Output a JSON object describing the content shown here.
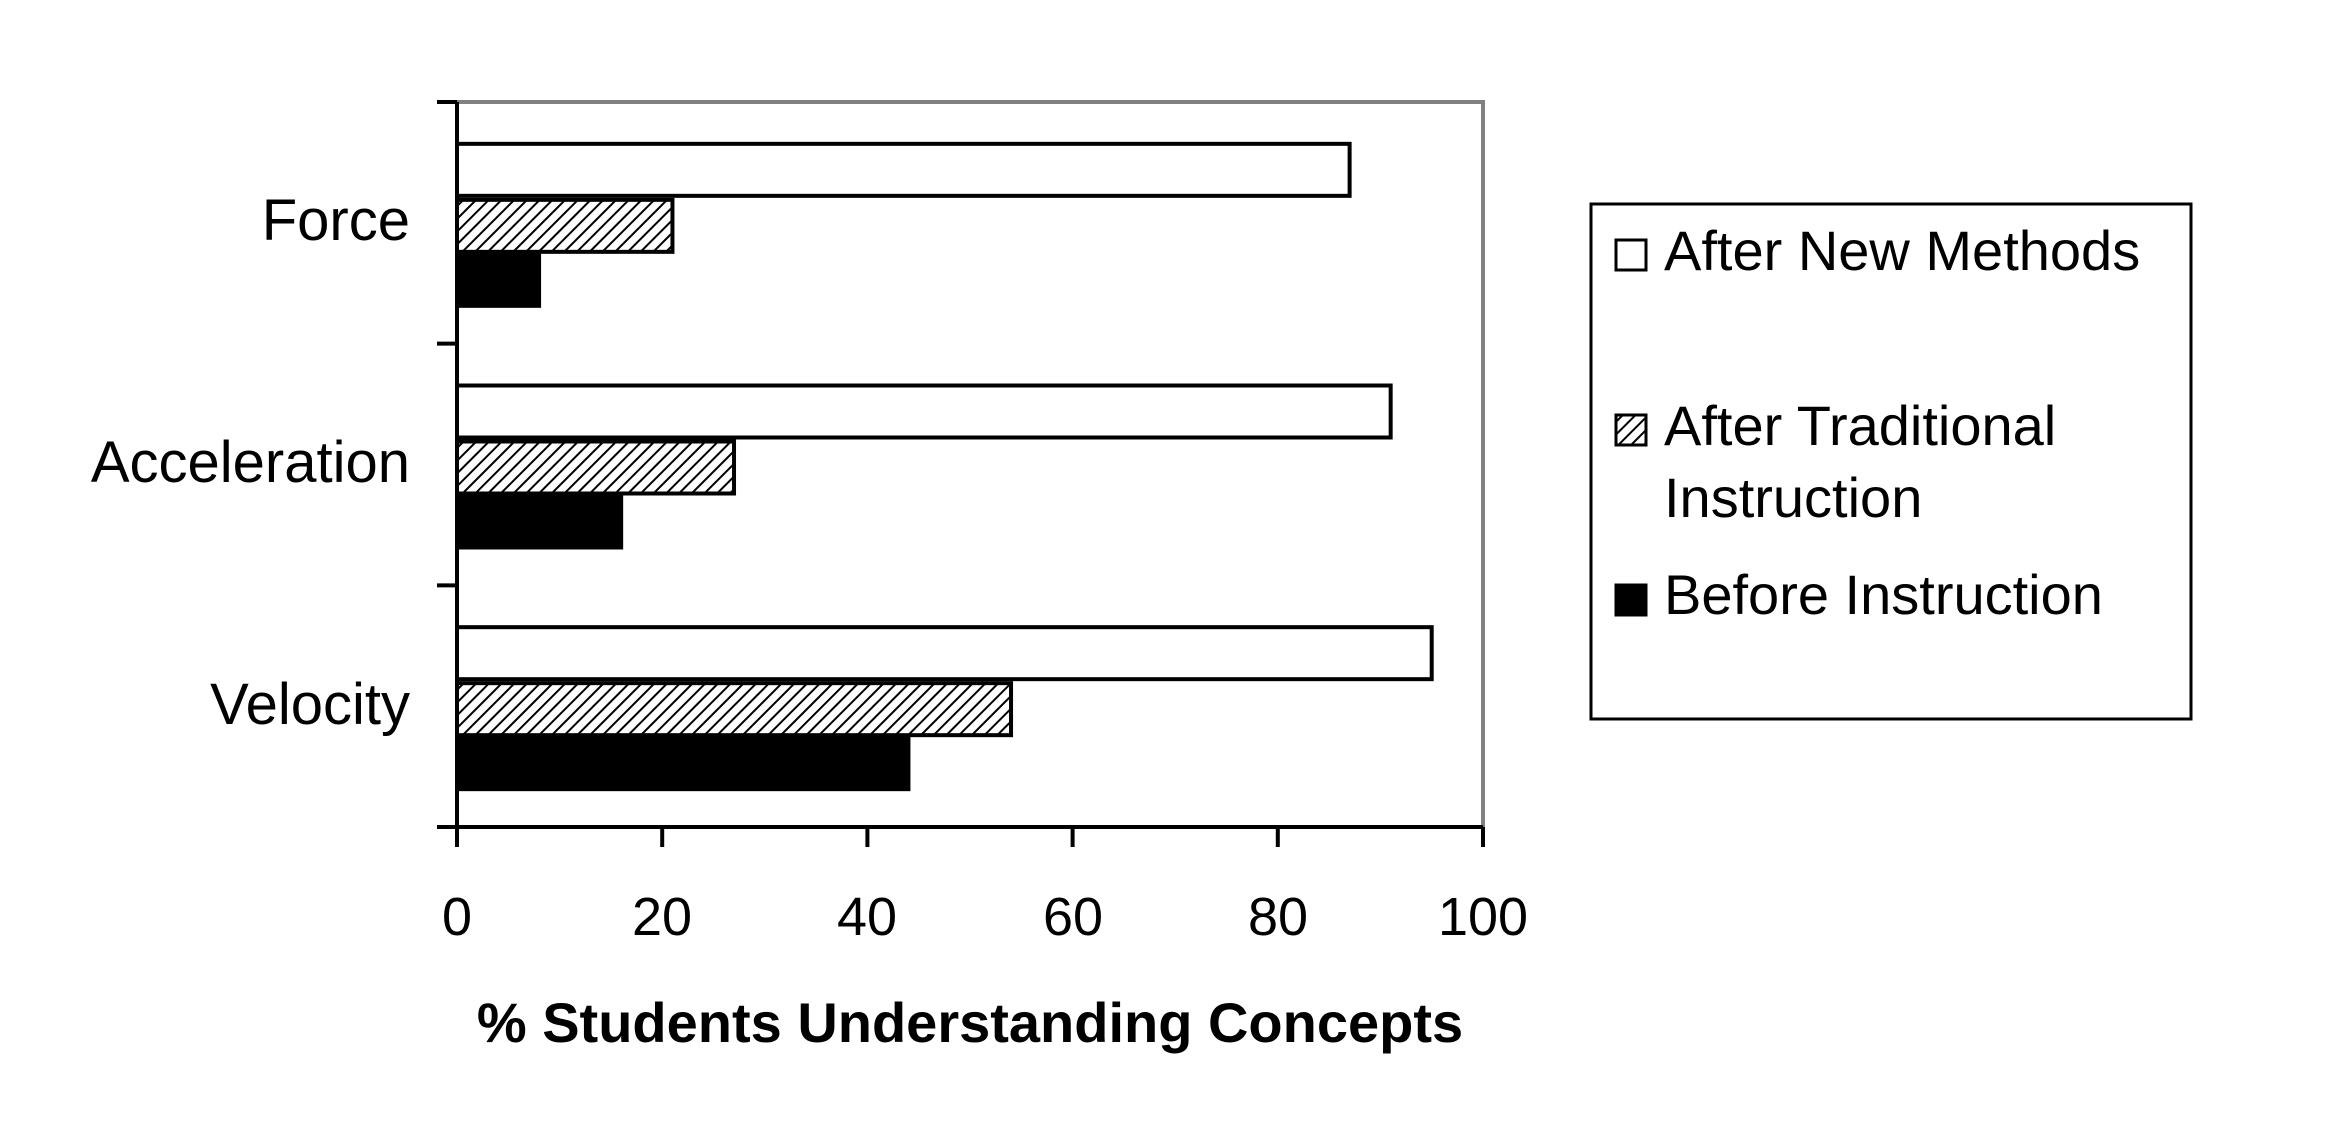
{
  "chart_data": {
    "type": "bar",
    "orientation": "horizontal",
    "categories": [
      "Force",
      "Acceleration",
      "Velocity"
    ],
    "series": [
      {
        "name": "After New Methods",
        "values": [
          87,
          91,
          95
        ],
        "fill": "#ffffff",
        "pattern": "none"
      },
      {
        "name": "After Traditional Instruction",
        "values": [
          21,
          27,
          54
        ],
        "fill": "#000000",
        "pattern": "diagonal-hatch"
      },
      {
        "name": "Before Instruction",
        "values": [
          8,
          16,
          44
        ],
        "fill": "#000000",
        "pattern": "solid"
      }
    ],
    "xlabel": "% Students Understanding Concepts",
    "ylabel": "",
    "xlim": [
      0,
      100
    ],
    "xticks": [
      "0",
      "20",
      "40",
      "60",
      "80",
      "100"
    ],
    "grid": false,
    "legend": {
      "placement": "right",
      "entries": [
        {
          "label_lines": [
            "After New Methods"
          ]
        },
        {
          "label_lines": [
            "After Traditional",
            "Instruction"
          ]
        },
        {
          "label_lines": [
            "Before Instruction"
          ]
        }
      ]
    },
    "colors": {
      "frame": "#808080",
      "bar_stroke": "#000000",
      "background": "#ffffff"
    }
  }
}
